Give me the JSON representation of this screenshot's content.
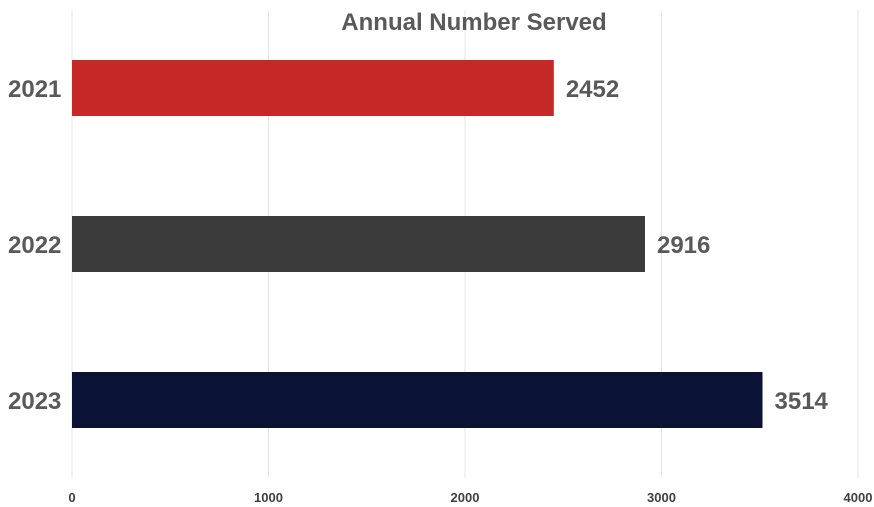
{
  "chart_data": {
    "type": "bar",
    "orientation": "horizontal",
    "title": "Annual Number Served",
    "categories": [
      "2021",
      "2022",
      "2023"
    ],
    "values": [
      2452,
      2916,
      3514
    ],
    "data_labels": [
      "2452",
      "2916",
      "3514"
    ],
    "bar_colors": [
      "#c62828",
      "#3b3b3b",
      "#0a1235"
    ],
    "xlim": [
      0,
      4000
    ],
    "x_ticks": [
      "0",
      "1000",
      "2000",
      "3000",
      "4000"
    ],
    "grid": "vertical",
    "legend": "none",
    "xlabel": "",
    "ylabel": ""
  }
}
